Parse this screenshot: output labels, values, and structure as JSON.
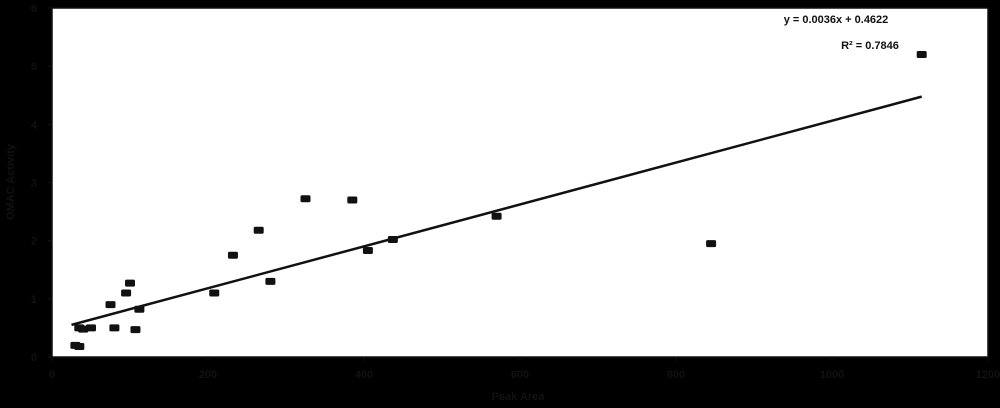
{
  "chart_data": {
    "type": "scatter",
    "xlabel": "Peak Area",
    "ylabel": "OMAC Activity",
    "xlim": [
      0,
      1200
    ],
    "ylim": [
      0,
      6
    ],
    "xticks": [
      "0",
      "200",
      "400",
      "600",
      "800",
      "1000",
      "1200"
    ],
    "yticks": [
      "0",
      "1",
      "2",
      "3",
      "4",
      "5",
      "6"
    ],
    "grid": false,
    "legend": "none",
    "series": [
      {
        "points": [
          {
            "x": 30,
            "y": 0.2
          },
          {
            "x": 35,
            "y": 0.18
          },
          {
            "x": 35,
            "y": 0.5
          },
          {
            "x": 40,
            "y": 0.48
          },
          {
            "x": 50,
            "y": 0.5
          },
          {
            "x": 75,
            "y": 0.9
          },
          {
            "x": 80,
            "y": 0.5
          },
          {
            "x": 95,
            "y": 1.1
          },
          {
            "x": 100,
            "y": 1.27
          },
          {
            "x": 107,
            "y": 0.47
          },
          {
            "x": 112,
            "y": 0.82
          },
          {
            "x": 208,
            "y": 1.1
          },
          {
            "x": 232,
            "y": 1.75
          },
          {
            "x": 265,
            "y": 2.18
          },
          {
            "x": 280,
            "y": 1.3
          },
          {
            "x": 325,
            "y": 2.72
          },
          {
            "x": 385,
            "y": 2.7
          },
          {
            "x": 405,
            "y": 1.83
          },
          {
            "x": 437,
            "y": 2.02
          },
          {
            "x": 570,
            "y": 2.42
          },
          {
            "x": 845,
            "y": 1.95
          },
          {
            "x": 1115,
            "y": 5.2
          }
        ]
      }
    ],
    "trendline": {
      "equation": "y = 0.0036x + 0.4622",
      "r2": "R² = 0.7846",
      "slope": 0.0036,
      "intercept": 0.4622,
      "x_range": [
        25,
        1115
      ]
    },
    "colors": {
      "background": "#000000",
      "plot_area": "#ffffff",
      "marker": "#111111",
      "line": "#111111",
      "text": "#111111"
    }
  }
}
